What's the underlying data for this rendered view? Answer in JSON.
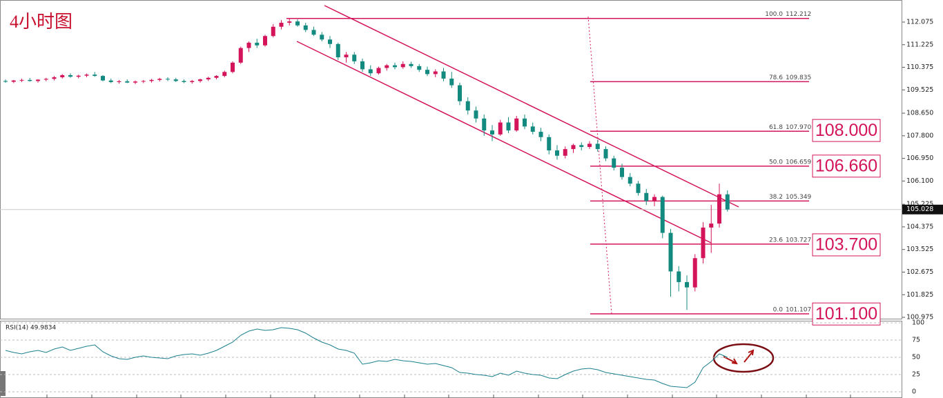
{
  "chart_data": [
    {
      "type": "candlestick",
      "title": "4小时图",
      "ohlc": [
        [
          109.86,
          109.92,
          109.79,
          109.83
        ],
        [
          109.83,
          109.9,
          109.78,
          109.88
        ],
        [
          109.88,
          109.95,
          109.82,
          109.9
        ],
        [
          109.9,
          109.97,
          109.84,
          109.86
        ],
        [
          109.86,
          109.93,
          109.8,
          109.91
        ],
        [
          109.91,
          109.98,
          109.85,
          109.94
        ],
        [
          109.94,
          110.05,
          109.88,
          110
        ],
        [
          110,
          110.12,
          109.95,
          110.08
        ],
        [
          110.08,
          110.15,
          109.98,
          110.02
        ],
        [
          110.02,
          110.1,
          109.96,
          110.06
        ],
        [
          110.06,
          110.14,
          110,
          110.1
        ],
        [
          110.1,
          110.2,
          110.02,
          110.05
        ],
        [
          110.05,
          110.08,
          109.85,
          109.88
        ],
        [
          109.88,
          109.95,
          109.78,
          109.82
        ],
        [
          109.82,
          109.9,
          109.76,
          109.85
        ],
        [
          109.85,
          109.92,
          109.78,
          109.8
        ],
        [
          109.8,
          109.88,
          109.74,
          109.84
        ],
        [
          109.84,
          109.9,
          109.78,
          109.86
        ],
        [
          109.86,
          109.94,
          109.8,
          109.9
        ],
        [
          109.9,
          109.98,
          109.84,
          109.94
        ],
        [
          109.94,
          110,
          109.86,
          109.92
        ],
        [
          109.92,
          109.98,
          109.82,
          109.86
        ],
        [
          109.86,
          109.92,
          109.78,
          109.82
        ],
        [
          109.82,
          109.9,
          109.76,
          109.86
        ],
        [
          109.86,
          109.95,
          109.8,
          109.92
        ],
        [
          109.92,
          110.02,
          109.86,
          109.98
        ],
        [
          109.98,
          110.08,
          109.92,
          110.05
        ],
        [
          110.05,
          110.25,
          110,
          110.2
        ],
        [
          110.2,
          110.6,
          110.15,
          110.55
        ],
        [
          110.55,
          111.15,
          110.5,
          111.1
        ],
        [
          111.1,
          111.35,
          110.95,
          111.3
        ],
        [
          111.3,
          111.45,
          111.1,
          111.2
        ],
        [
          111.2,
          111.6,
          111.15,
          111.55
        ],
        [
          111.55,
          112,
          111.5,
          111.9
        ],
        [
          111.9,
          112.15,
          111.8,
          112.05
        ],
        [
          112.05,
          112.21,
          111.95,
          112.1
        ],
        [
          112.1,
          112.18,
          111.9,
          111.95
        ],
        [
          111.95,
          112.05,
          111.7,
          111.78
        ],
        [
          111.78,
          111.9,
          111.55,
          111.6
        ],
        [
          111.6,
          111.7,
          111.35,
          111.42
        ],
        [
          111.42,
          111.55,
          111.1,
          111.25
        ],
        [
          111.25,
          111.3,
          110.65,
          110.75
        ],
        [
          110.75,
          110.95,
          110.55,
          110.85
        ],
        [
          110.85,
          110.95,
          110.5,
          110.6
        ],
        [
          110.6,
          110.7,
          110.2,
          110.3
        ],
        [
          110.3,
          110.45,
          110.05,
          110.15
        ],
        [
          110.15,
          110.4,
          110.1,
          110.35
        ],
        [
          110.35,
          110.5,
          110.25,
          110.45
        ],
        [
          110.45,
          110.55,
          110.3,
          110.38
        ],
        [
          110.38,
          110.6,
          110.32,
          110.5
        ],
        [
          110.5,
          110.58,
          110.35,
          110.42
        ],
        [
          110.42,
          110.5,
          110.2,
          110.28
        ],
        [
          110.28,
          110.4,
          110.05,
          110.12
        ],
        [
          110.12,
          110.3,
          110,
          110.22
        ],
        [
          110.22,
          110.35,
          109.85,
          109.95
        ],
        [
          109.95,
          110.2,
          109.6,
          109.7
        ],
        [
          109.7,
          109.8,
          108.95,
          109.1
        ],
        [
          109.1,
          109.25,
          108.6,
          108.75
        ],
        [
          108.75,
          108.9,
          108.3,
          108.45
        ],
        [
          108.45,
          108.6,
          107.8,
          108
        ],
        [
          108,
          108.2,
          107.6,
          107.85
        ],
        [
          107.85,
          108.4,
          107.8,
          108.3
        ],
        [
          108.3,
          108.5,
          107.9,
          108
        ],
        [
          108,
          108.55,
          107.95,
          108.45
        ],
        [
          108.45,
          108.6,
          108.05,
          108.15
        ],
        [
          108.15,
          108.3,
          107.85,
          107.95
        ],
        [
          107.95,
          108.1,
          107.6,
          107.75
        ],
        [
          107.75,
          107.85,
          107.1,
          107.25
        ],
        [
          107.25,
          107.45,
          106.9,
          107.05
        ],
        [
          107.05,
          107.4,
          106.95,
          107.3
        ],
        [
          107.3,
          107.5,
          107.15,
          107.45
        ],
        [
          107.45,
          107.55,
          107.25,
          107.38
        ],
        [
          107.38,
          107.6,
          107.3,
          107.5
        ],
        [
          107.5,
          107.65,
          107.2,
          107.3
        ],
        [
          107.3,
          107.4,
          106.85,
          106.95
        ],
        [
          106.95,
          107.05,
          106.5,
          106.6
        ],
        [
          106.6,
          106.75,
          106.15,
          106.25
        ],
        [
          106.25,
          106.4,
          105.9,
          106
        ],
        [
          106,
          106.1,
          105.55,
          105.65
        ],
        [
          105.65,
          105.8,
          105.2,
          105.35
        ],
        [
          105.35,
          105.6,
          105.15,
          105.5
        ],
        [
          105.5,
          105.55,
          103.95,
          104.15
        ],
        [
          104.15,
          104.3,
          101.75,
          102.7
        ],
        [
          102.7,
          102.9,
          101.95,
          102.3
        ],
        [
          102.3,
          102.55,
          101.25,
          102.1
        ],
        [
          102.1,
          103.35,
          101.95,
          103.2
        ],
        [
          103.2,
          104.55,
          103,
          104.35
        ],
        [
          104.35,
          105.2,
          103.4,
          104.5
        ],
        [
          104.5,
          106,
          104.35,
          105.6
        ],
        [
          105.6,
          105.75,
          104.95,
          105.03
        ]
      ],
      "up_color": "#d4145a",
      "down_color": "#138a80",
      "ylim": [
        100.898,
        112.905
      ],
      "yticks": [
        112.075,
        111.225,
        110.375,
        109.525,
        {
          "value": 108.65,
          "label": "108.650"
        },
        {
          "value": 107.8,
          "label": "107.800"
        },
        {
          "value": 106.95,
          "label": "106.950"
        },
        {
          "value": 106.1,
          "label": "106.100"
        },
        105.225,
        104.375,
        103.525,
        102.675,
        101.825,
        100.975
      ],
      "current_price": 105.028,
      "fib_levels": [
        {
          "level": "100.0",
          "price": {
            "value": 112.212,
            "label": "112.212"
          }
        },
        {
          "level": "78.6",
          "price": {
            "value": 109.835,
            "label": "109.835"
          }
        },
        {
          "level": "61.8",
          "price": {
            "value": 107.97,
            "label": "107.970"
          }
        },
        {
          "level": "50.0",
          "price": {
            "value": 106.659,
            "label": "106.659"
          }
        },
        {
          "level": "38.2",
          "price": {
            "value": 105.349,
            "label": "105.349"
          }
        },
        {
          "level": "23.6",
          "price": {
            "value": 103.727,
            "label": "103.727"
          }
        },
        {
          "level": "0.0",
          "price": {
            "value": 101.107,
            "label": "101.107"
          }
        }
      ],
      "targets": [
        {
          "value": 108,
          "label": "108.000"
        },
        {
          "value": 106.66,
          "label": "106.660"
        },
        {
          "value": 103.7,
          "label": "103.700"
        },
        {
          "value": 101.1,
          "label": "101.100"
        }
      ]
    },
    {
      "type": "line",
      "title": "RSI(14) 49.9834",
      "color": "#1a7f8e",
      "values": [
        60,
        57,
        55,
        58,
        60,
        57,
        62,
        65,
        60,
        63,
        66,
        68,
        58,
        52,
        48,
        47,
        50,
        52,
        50,
        49,
        48,
        52,
        54,
        55,
        53,
        56,
        60,
        66,
        72,
        82,
        88,
        91,
        89,
        90,
        93,
        92,
        90,
        85,
        78,
        72,
        68,
        62,
        60,
        56,
        40,
        42,
        45,
        44,
        47,
        45,
        44,
        42,
        40,
        41,
        38,
        35,
        28,
        27,
        25,
        24,
        22,
        27,
        24,
        30,
        27,
        25,
        24,
        20,
        19,
        25,
        30,
        33,
        34,
        32,
        28,
        26,
        24,
        22,
        20,
        18,
        17,
        12,
        8,
        7,
        6,
        14,
        35,
        44,
        55,
        49.9834
      ],
      "ylim": [
        -9,
        103
      ],
      "yticks": [
        100,
        75,
        50,
        25,
        0
      ]
    }
  ]
}
